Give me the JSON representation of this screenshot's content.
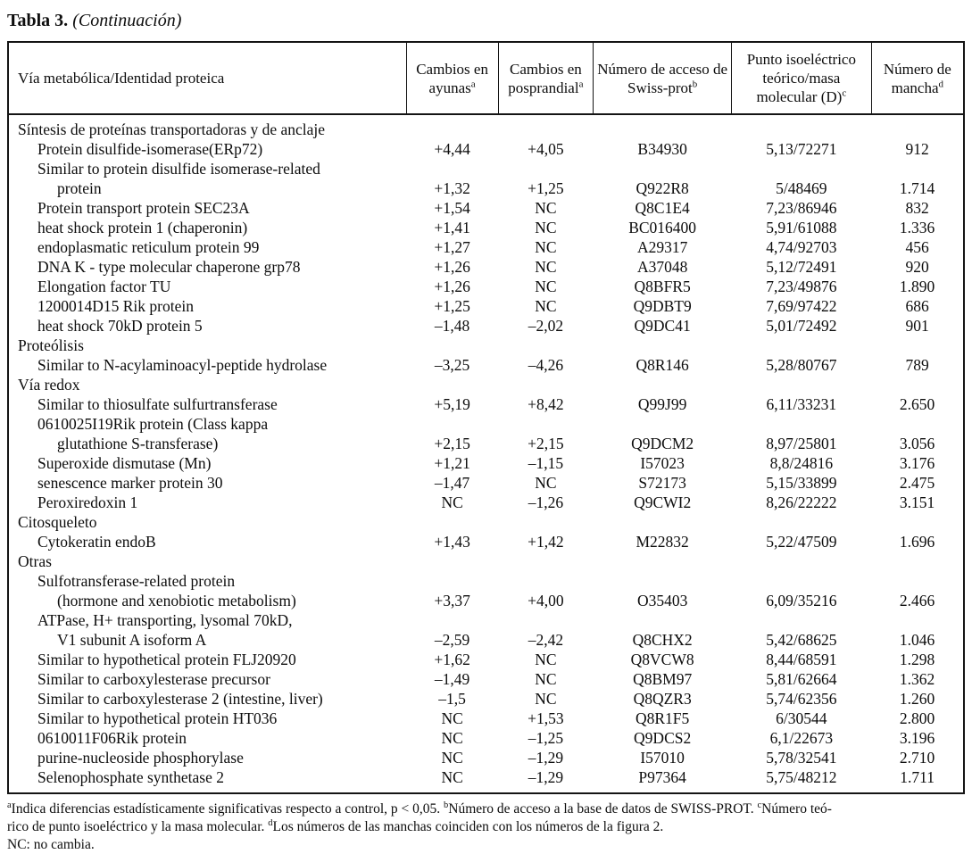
{
  "title": {
    "label": "Tabla 3.",
    "continuation": "(Continuación)"
  },
  "table": {
    "headers": [
      {
        "label": "Vía metabólica/Identidad proteica",
        "sup": ""
      },
      {
        "label": "Cambios en ayunas",
        "sup": "a"
      },
      {
        "label": "Cambios en posprandial",
        "sup": "a"
      },
      {
        "label": "Número de acceso de Swiss-prot",
        "sup": "b"
      },
      {
        "label": "Punto isoeléctrico teórico/masa molecular (D)",
        "sup": "c"
      },
      {
        "label": "Número de mancha",
        "sup": "d"
      }
    ],
    "rows": [
      {
        "label": "Síntesis de proteínas transportadoras y de anclaje",
        "indent": 0,
        "values": [
          "",
          "",
          "",
          "",
          ""
        ]
      },
      {
        "label": "Protein disulfide-isomerase(ERp72)",
        "indent": 1,
        "values": [
          "+4,44",
          "+4,05",
          "B34930",
          "5,13/72271",
          "912"
        ]
      },
      {
        "label": "Similar to protein disulfide isomerase-related",
        "indent": 1,
        "values": [
          "",
          "",
          "",
          "",
          ""
        ]
      },
      {
        "label": "protein",
        "indent": 2,
        "values": [
          "+1,32",
          "+1,25",
          "Q922R8",
          "5/48469",
          "1.714"
        ]
      },
      {
        "label": "Protein transport protein SEC23A",
        "indent": 1,
        "values": [
          "+1,54",
          "NC",
          "Q8C1E4",
          "7,23/86946",
          "832"
        ]
      },
      {
        "label": "heat shock protein 1 (chaperonin)",
        "indent": 1,
        "values": [
          "+1,41",
          "NC",
          "BC016400",
          "5,91/61088",
          "1.336"
        ]
      },
      {
        "label": "endoplasmatic reticulum protein 99",
        "indent": 1,
        "values": [
          "+1,27",
          "NC",
          "A29317",
          "4,74/92703",
          "456"
        ]
      },
      {
        "label": "DNA K - type molecular chaperone grp78",
        "indent": 1,
        "values": [
          "+1,26",
          "NC",
          "A37048",
          "5,12/72491",
          "920"
        ]
      },
      {
        "label": "Elongation factor TU",
        "indent": 1,
        "values": [
          "+1,26",
          "NC",
          "Q8BFR5",
          "7,23/49876",
          "1.890"
        ]
      },
      {
        "label": "1200014D15 Rik protein",
        "indent": 1,
        "values": [
          "+1,25",
          "NC",
          "Q9DBT9",
          "7,69/97422",
          "686"
        ]
      },
      {
        "label": "heat shock 70kD protein 5",
        "indent": 1,
        "values": [
          "–1,48",
          "–2,02",
          "Q9DC41",
          "5,01/72492",
          "901"
        ]
      },
      {
        "label": "Proteólisis",
        "indent": 0,
        "values": [
          "",
          "",
          "",
          "",
          ""
        ]
      },
      {
        "label": "Similar to N-acylaminoacyl-peptide hydrolase",
        "indent": 1,
        "values": [
          "–3,25",
          "–4,26",
          "Q8R146",
          "5,28/80767",
          "789"
        ]
      },
      {
        "label": "Vía redox",
        "indent": 0,
        "values": [
          "",
          "",
          "",
          "",
          ""
        ]
      },
      {
        "label": "Similar to thiosulfate sulfurtransferase",
        "indent": 1,
        "values": [
          "+5,19",
          "+8,42",
          "Q99J99",
          "6,11/33231",
          "2.650"
        ]
      },
      {
        "label": "0610025I19Rik protein (Class kappa",
        "indent": 1,
        "values": [
          "",
          "",
          "",
          "",
          ""
        ]
      },
      {
        "label": "glutathione S-transferase)",
        "indent": 2,
        "values": [
          "+2,15",
          "+2,15",
          "Q9DCM2",
          "8,97/25801",
          "3.056"
        ]
      },
      {
        "label": "Superoxide dismutase (Mn)",
        "indent": 1,
        "values": [
          "+1,21",
          "–1,15",
          "I57023",
          "8,8/24816",
          "3.176"
        ]
      },
      {
        "label": "senescence marker protein 30",
        "indent": 1,
        "values": [
          "–1,47",
          "NC",
          "S72173",
          "5,15/33899",
          "2.475"
        ]
      },
      {
        "label": "Peroxiredoxin 1",
        "indent": 1,
        "values": [
          "NC",
          "–1,26",
          "Q9CWI2",
          "8,26/22222",
          "3.151"
        ]
      },
      {
        "label": "Citosqueleto",
        "indent": 0,
        "values": [
          "",
          "",
          "",
          "",
          ""
        ]
      },
      {
        "label": "Cytokeratin endoB",
        "indent": 1,
        "values": [
          "+1,43",
          "+1,42",
          "M22832",
          "5,22/47509",
          "1.696"
        ]
      },
      {
        "label": "Otras",
        "indent": 0,
        "values": [
          "",
          "",
          "",
          "",
          ""
        ]
      },
      {
        "label": "Sulfotransferase-related protein",
        "indent": 1,
        "values": [
          "",
          "",
          "",
          "",
          ""
        ]
      },
      {
        "label": "(hormone and xenobiotic metabolism)",
        "indent": 2,
        "values": [
          "+3,37",
          "+4,00",
          "O35403",
          "6,09/35216",
          "2.466"
        ]
      },
      {
        "label": "ATPase, H+ transporting, lysomal 70kD,",
        "indent": 1,
        "values": [
          "",
          "",
          "",
          "",
          ""
        ]
      },
      {
        "label": "V1 subunit A isoform A",
        "indent": 2,
        "values": [
          "–2,59",
          "–2,42",
          "Q8CHX2",
          "5,42/68625",
          "1.046"
        ]
      },
      {
        "label": "Similar to hypothetical protein FLJ20920",
        "indent": 1,
        "values": [
          "+1,62",
          "NC",
          "Q8VCW8",
          "8,44/68591",
          "1.298"
        ]
      },
      {
        "label": "Similar to carboxylesterase precursor",
        "indent": 1,
        "values": [
          "–1,49",
          "NC",
          "Q8BM97",
          "5,81/62664",
          "1.362"
        ]
      },
      {
        "label": "Similar to carboxylesterase 2 (intestine, liver)",
        "indent": 1,
        "values": [
          "–1,5",
          "NC",
          "Q8QZR3",
          "5,74/62356",
          "1.260"
        ]
      },
      {
        "label": "Similar to hypothetical protein HT036",
        "indent": 1,
        "values": [
          "NC",
          "+1,53",
          "Q8R1F5",
          "6/30544",
          "2.800"
        ]
      },
      {
        "label": "0610011F06Rik protein",
        "indent": 1,
        "values": [
          "NC",
          "–1,25",
          "Q9DCS2",
          "6,1/22673",
          "3.196"
        ]
      },
      {
        "label": "purine-nucleoside phosphorylase",
        "indent": 1,
        "values": [
          "NC",
          "–1,29",
          "I57010",
          "5,78/32541",
          "2.710"
        ]
      },
      {
        "label": "Selenophosphate synthetase 2",
        "indent": 1,
        "values": [
          "NC",
          "–1,29",
          "P97364",
          "5,75/48212",
          "1.711"
        ]
      }
    ]
  },
  "footnotes": {
    "lines": [
      [
        {
          "sup": "a"
        },
        {
          "text": "Indica diferencias estadísticamente significativas respecto a control, p < 0,05. "
        },
        {
          "sup": "b"
        },
        {
          "text": "Número de acceso a la base de datos de SWISS-PROT. "
        },
        {
          "sup": "c"
        },
        {
          "text": "Número teó-"
        }
      ],
      [
        {
          "text": "rico de punto isoeléctrico y la masa molecular. "
        },
        {
          "sup": "d"
        },
        {
          "text": "Los números de las manchas coinciden con los números de la figura 2."
        }
      ],
      [
        {
          "text": "NC: no cambia."
        }
      ]
    ]
  }
}
